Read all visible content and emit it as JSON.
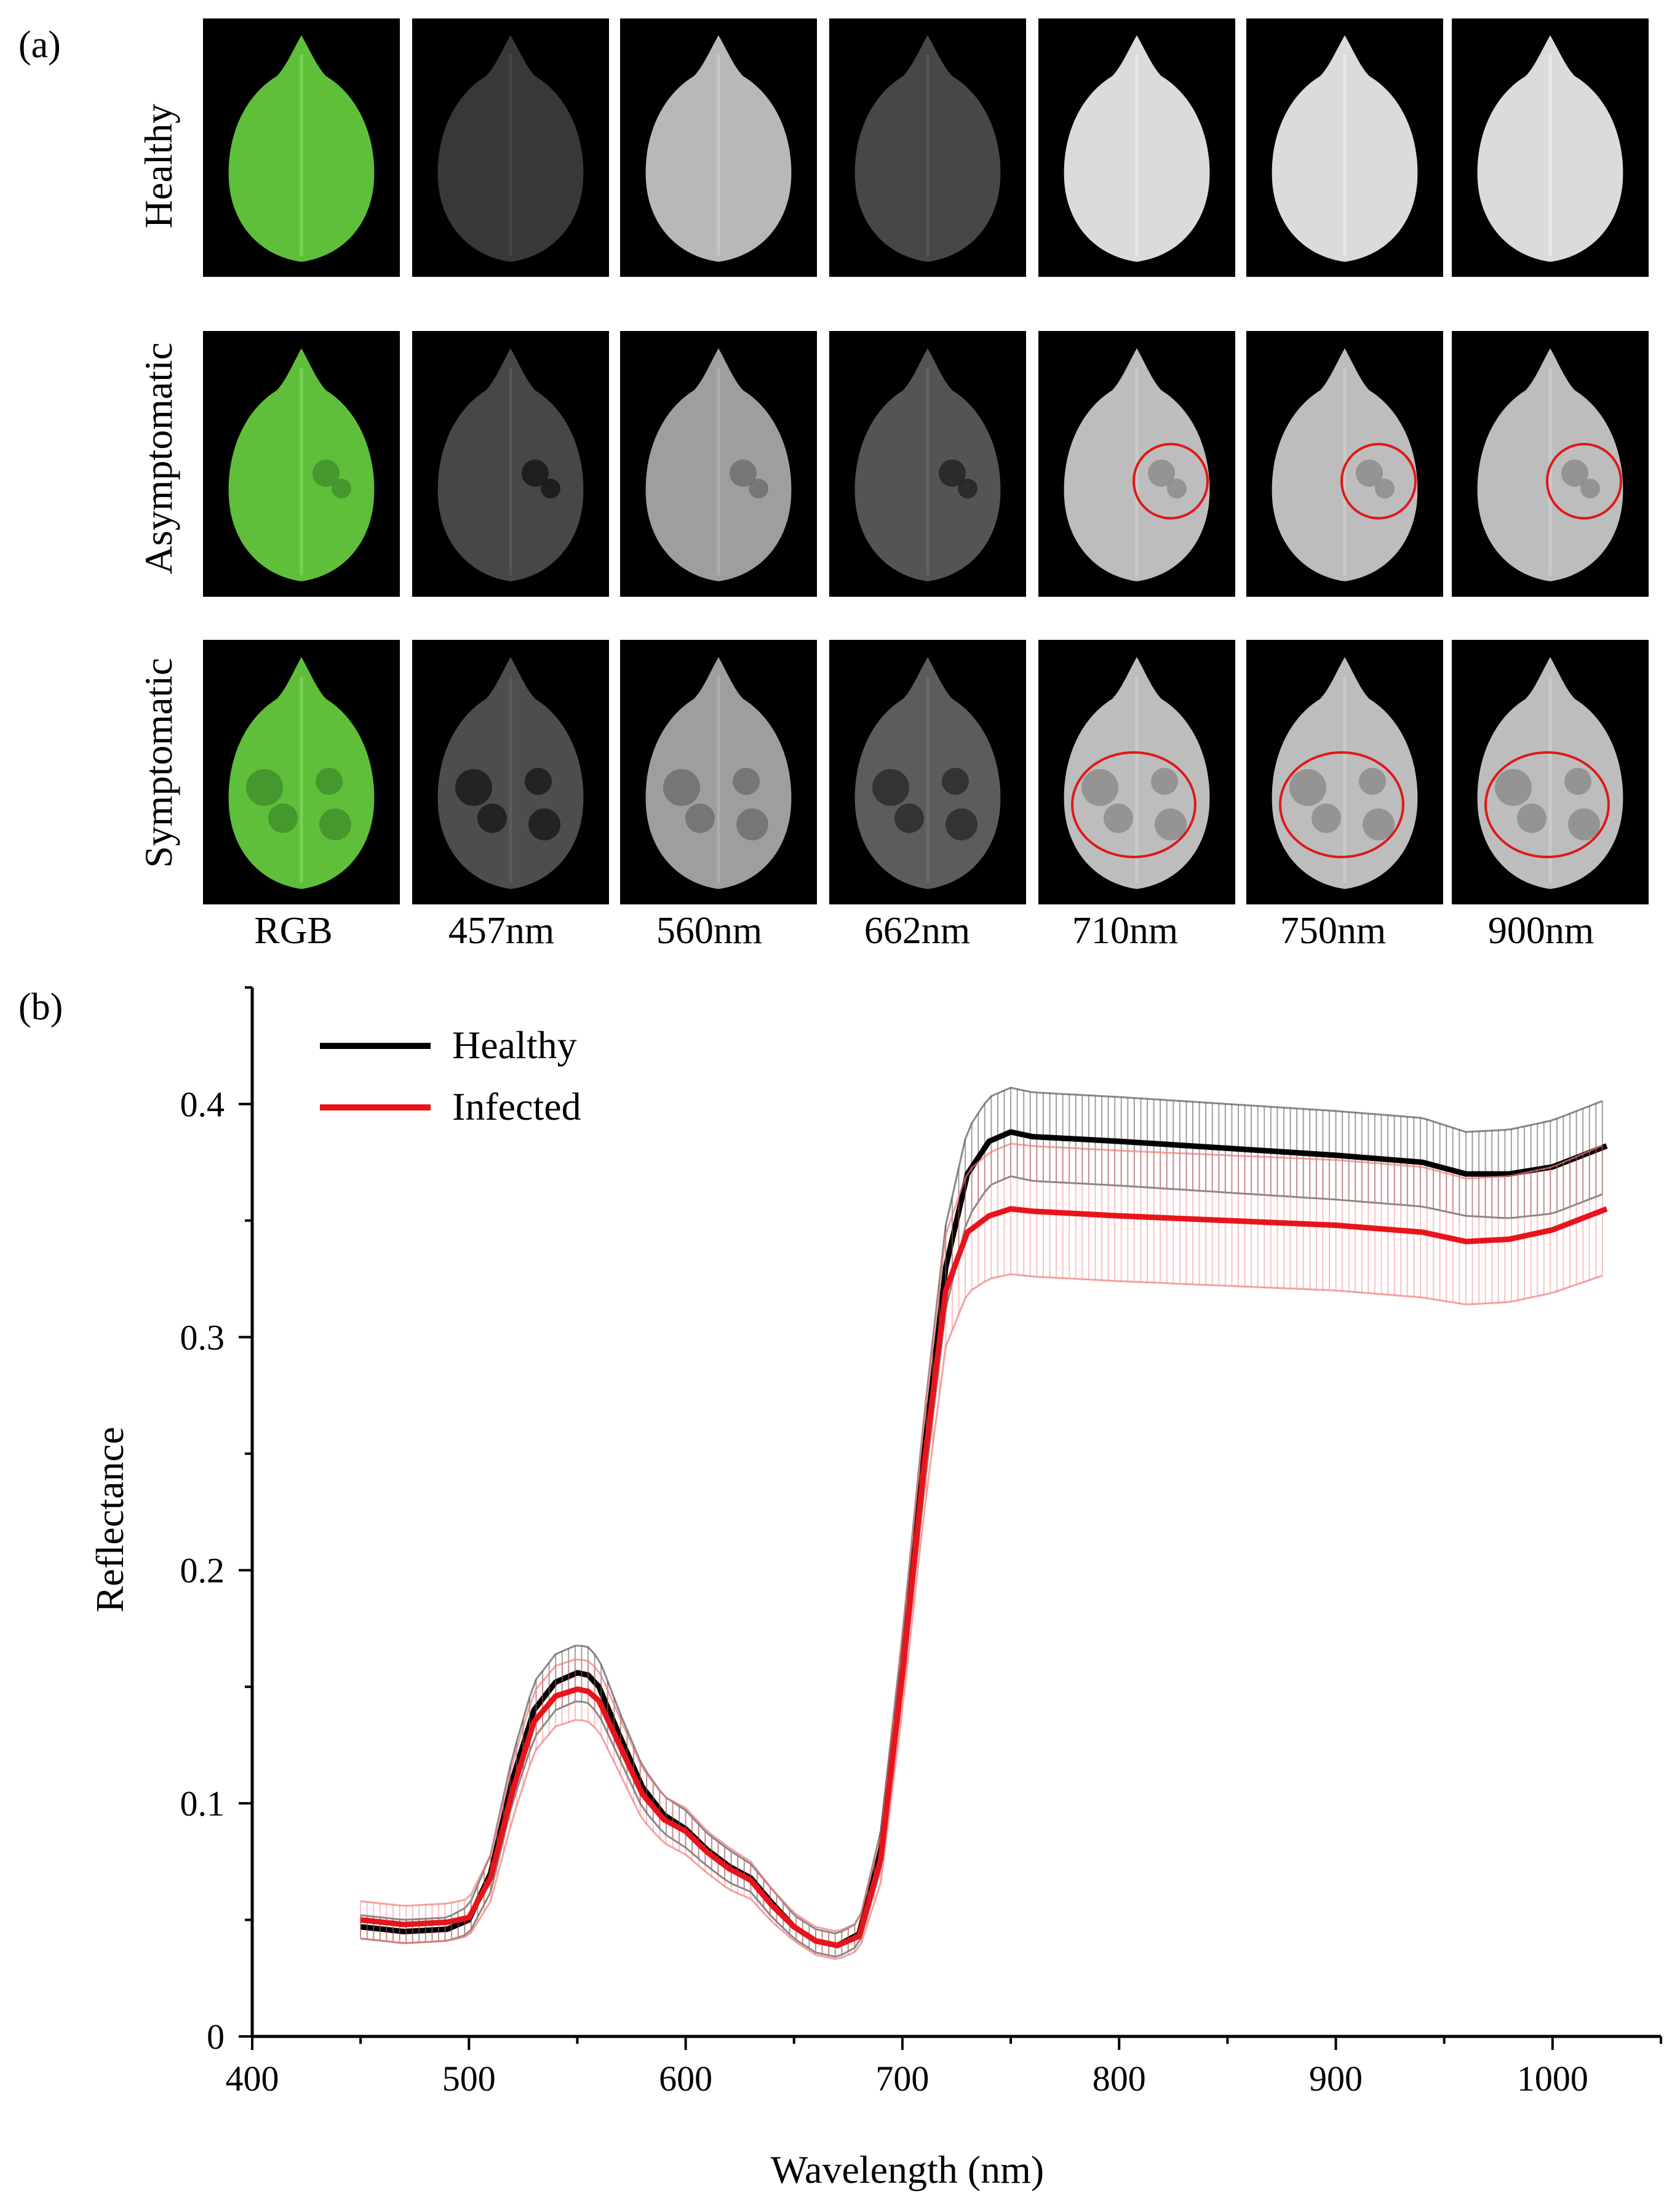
{
  "panel_a": {
    "label": "(a)",
    "rows": [
      "Healthy",
      "Asymptomatic",
      "Symptomatic"
    ],
    "columns": [
      "RGB",
      "457nm",
      "560nm",
      "662nm",
      "710nm",
      "750nm",
      "900nm"
    ],
    "highlight_color": "#e01818",
    "leaf_green": "#5fbf3a"
  },
  "panel_b": {
    "label": "(b)"
  },
  "chart_data": {
    "type": "line",
    "title": "",
    "xlabel": "Wavelength (nm)",
    "ylabel": "Reflectance",
    "xlim": [
      400,
      1050
    ],
    "ylim": [
      0,
      0.45
    ],
    "x_ticks": [
      "400",
      "500",
      "600",
      "700",
      "800",
      "900",
      "1000"
    ],
    "y_ticks": [
      "0",
      "0.1",
      "0.2",
      "0.3",
      "0.4"
    ],
    "legend": [
      "Healthy",
      "Infected"
    ],
    "legend_position": "top-left",
    "x": [
      450,
      470,
      490,
      500,
      510,
      520,
      530,
      540,
      550,
      555,
      560,
      570,
      580,
      590,
      600,
      610,
      620,
      630,
      640,
      650,
      660,
      670,
      680,
      690,
      700,
      710,
      720,
      730,
      740,
      750,
      760,
      780,
      800,
      850,
      900,
      940,
      960,
      980,
      1000,
      1025
    ],
    "series": [
      {
        "name": "Healthy",
        "color": "#000000",
        "values": [
          0.047,
          0.045,
          0.046,
          0.05,
          0.07,
          0.11,
          0.14,
          0.152,
          0.156,
          0.155,
          0.15,
          0.128,
          0.107,
          0.095,
          0.089,
          0.08,
          0.073,
          0.068,
          0.057,
          0.047,
          0.041,
          0.039,
          0.044,
          0.08,
          0.16,
          0.25,
          0.33,
          0.37,
          0.384,
          0.388,
          0.386,
          0.385,
          0.384,
          0.381,
          0.378,
          0.375,
          0.37,
          0.37,
          0.373,
          0.382
        ],
        "error": [
          0.005,
          0.005,
          0.005,
          0.006,
          0.008,
          0.01,
          0.012,
          0.012,
          0.012,
          0.012,
          0.012,
          0.01,
          0.009,
          0.008,
          0.008,
          0.007,
          0.007,
          0.006,
          0.006,
          0.005,
          0.005,
          0.005,
          0.005,
          0.008,
          0.012,
          0.016,
          0.018,
          0.019,
          0.019,
          0.019,
          0.019,
          0.019,
          0.019,
          0.019,
          0.019,
          0.019,
          0.018,
          0.019,
          0.02,
          0.02
        ]
      },
      {
        "name": "Infected",
        "color": "#e8141c",
        "values": [
          0.05,
          0.048,
          0.049,
          0.051,
          0.068,
          0.105,
          0.135,
          0.146,
          0.149,
          0.148,
          0.144,
          0.124,
          0.104,
          0.093,
          0.088,
          0.079,
          0.072,
          0.067,
          0.056,
          0.047,
          0.041,
          0.039,
          0.043,
          0.076,
          0.155,
          0.245,
          0.32,
          0.345,
          0.352,
          0.355,
          0.354,
          0.353,
          0.352,
          0.35,
          0.348,
          0.345,
          0.341,
          0.342,
          0.346,
          0.355
        ],
        "error": [
          0.008,
          0.008,
          0.008,
          0.008,
          0.01,
          0.012,
          0.013,
          0.013,
          0.013,
          0.013,
          0.013,
          0.012,
          0.011,
          0.01,
          0.01,
          0.009,
          0.009,
          0.008,
          0.007,
          0.006,
          0.006,
          0.006,
          0.006,
          0.01,
          0.015,
          0.02,
          0.024,
          0.026,
          0.027,
          0.028,
          0.028,
          0.028,
          0.028,
          0.028,
          0.028,
          0.028,
          0.027,
          0.027,
          0.027,
          0.028
        ]
      }
    ]
  }
}
